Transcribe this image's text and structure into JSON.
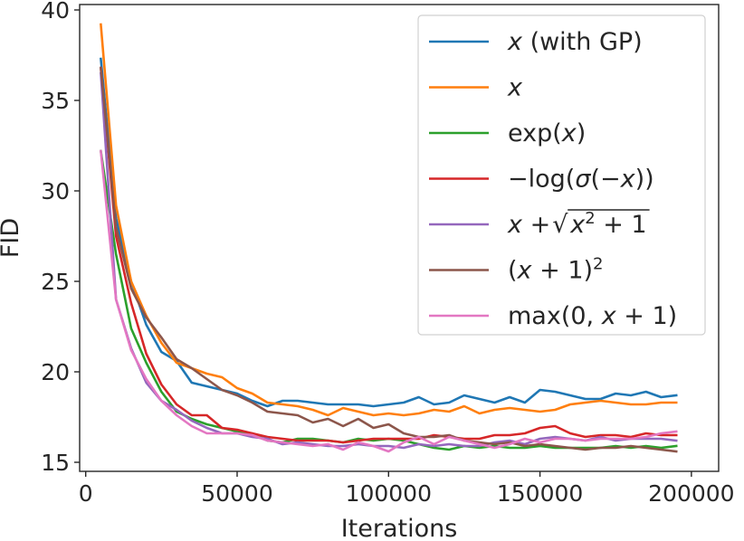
{
  "chart_data": {
    "type": "line",
    "title": "",
    "xlabel": "Iterations",
    "ylabel": "FID",
    "xlim": [
      -2000,
      209000
    ],
    "ylim": [
      14.5,
      40.3
    ],
    "xticks": [
      0,
      50000,
      100000,
      150000,
      200000
    ],
    "xtick_labels": [
      "0",
      "50000",
      "100000",
      "150000",
      "200000"
    ],
    "yticks": [
      15,
      20,
      25,
      30,
      35,
      40
    ],
    "ytick_labels": [
      "15",
      "20",
      "25",
      "30",
      "35",
      "40"
    ],
    "grid": false,
    "legend_position": "top-right",
    "x": [
      5000,
      10000,
      15000,
      20000,
      25000,
      30000,
      35000,
      40000,
      45000,
      50000,
      55000,
      60000,
      65000,
      70000,
      75000,
      80000,
      85000,
      90000,
      95000,
      100000,
      105000,
      110000,
      115000,
      120000,
      125000,
      130000,
      135000,
      140000,
      145000,
      150000,
      155000,
      160000,
      165000,
      170000,
      175000,
      180000,
      185000,
      190000,
      195000
    ],
    "series": [
      {
        "name": "x (with GP)",
        "label_parts": [
          {
            "t": "x",
            "i": true
          },
          {
            "t": " (with GP)",
            "i": false
          }
        ],
        "color": "#1f77b4",
        "values": [
          37.3,
          28.5,
          25.0,
          22.6,
          21.1,
          20.6,
          19.4,
          19.2,
          19.0,
          18.8,
          18.4,
          18.1,
          18.4,
          18.4,
          18.3,
          18.2,
          18.2,
          18.2,
          18.1,
          18.2,
          18.3,
          18.6,
          18.2,
          18.3,
          18.7,
          18.5,
          18.3,
          18.6,
          18.3,
          19.0,
          18.9,
          18.7,
          18.5,
          18.5,
          18.8,
          18.7,
          18.9,
          18.6,
          18.7
        ]
      },
      {
        "name": "x",
        "label_parts": [
          {
            "t": "x",
            "i": true
          }
        ],
        "color": "#ff7f0e",
        "values": [
          39.2,
          29.2,
          25.0,
          23.1,
          21.6,
          20.5,
          20.2,
          19.9,
          19.7,
          19.1,
          18.8,
          18.3,
          18.2,
          18.1,
          17.9,
          17.6,
          18.0,
          17.8,
          17.6,
          17.7,
          17.6,
          17.7,
          17.9,
          17.8,
          18.1,
          17.7,
          17.9,
          18.0,
          17.9,
          17.8,
          17.9,
          18.2,
          18.3,
          18.4,
          18.3,
          18.2,
          18.2,
          18.3,
          18.3
        ]
      },
      {
        "name": "exp(x)",
        "label_parts": [
          {
            "t": "exp(",
            "i": false
          },
          {
            "t": "x",
            "i": true
          },
          {
            "t": ")",
            "i": false
          }
        ],
        "color": "#2ca02c",
        "values": [
          32.2,
          26.5,
          22.4,
          20.5,
          18.9,
          17.8,
          17.4,
          17.1,
          16.9,
          16.7,
          16.6,
          16.2,
          16.1,
          16.3,
          16.3,
          16.2,
          16.1,
          16.3,
          16.2,
          16.3,
          16.2,
          16.0,
          15.8,
          15.7,
          15.9,
          15.8,
          15.9,
          15.8,
          15.8,
          15.9,
          15.8,
          15.8,
          15.8,
          15.8,
          15.9,
          15.8,
          15.9,
          15.8,
          15.9
        ]
      },
      {
        "name": "−log(σ(−x))",
        "label_parts": [
          {
            "t": "−log(",
            "i": false
          },
          {
            "t": "σ",
            "i": true
          },
          {
            "t": "(−",
            "i": false
          },
          {
            "t": "x",
            "i": true
          },
          {
            "t": "))",
            "i": false
          }
        ],
        "color": "#d62728",
        "values": [
          36.8,
          27.5,
          23.8,
          21.0,
          19.3,
          18.2,
          17.6,
          17.6,
          16.9,
          16.8,
          16.6,
          16.4,
          16.3,
          16.2,
          16.2,
          16.2,
          16.1,
          16.2,
          16.3,
          16.3,
          16.3,
          16.3,
          16.5,
          16.4,
          16.3,
          16.3,
          16.5,
          16.5,
          16.6,
          16.9,
          17.0,
          16.6,
          16.4,
          16.5,
          16.5,
          16.4,
          16.6,
          16.5,
          16.5
        ]
      },
      {
        "name": "x + √(x² + 1)",
        "label_parts": [
          {
            "t": "x",
            "i": true
          },
          {
            "t": " + ",
            "i": false
          }
        ],
        "sqrt_parts": [
          {
            "t": "x",
            "i": true
          },
          {
            "t": "2",
            "i": false,
            "sup": true
          },
          {
            "t": " + 1",
            "i": false
          }
        ],
        "color": "#9467bd",
        "values": [
          36.5,
          24.0,
          21.3,
          19.4,
          18.4,
          17.9,
          17.3,
          16.9,
          16.6,
          16.6,
          16.4,
          16.3,
          16.0,
          16.1,
          16.0,
          15.9,
          15.9,
          16.0,
          15.9,
          15.9,
          15.8,
          16.0,
          15.9,
          16.0,
          15.9,
          15.9,
          16.1,
          16.2,
          16.0,
          16.3,
          16.4,
          16.3,
          16.2,
          16.4,
          16.2,
          16.3,
          16.3,
          16.3,
          16.2
        ]
      },
      {
        "name": "(x + 1)²",
        "label_parts": [
          {
            "t": "(",
            "i": false
          },
          {
            "t": "x",
            "i": true
          },
          {
            "t": " + 1)",
            "i": false
          },
          {
            "t": "2",
            "i": false,
            "sup": true
          }
        ],
        "color": "#8c564b",
        "values": [
          36.8,
          28.0,
          24.6,
          23.0,
          21.9,
          20.7,
          20.2,
          19.6,
          19.0,
          18.7,
          18.3,
          17.8,
          17.7,
          17.6,
          17.2,
          17.4,
          17.0,
          17.4,
          16.9,
          17.1,
          16.6,
          16.4,
          16.4,
          16.5,
          16.2,
          16.1,
          16.0,
          16.1,
          15.9,
          16.0,
          15.9,
          15.8,
          15.7,
          15.8,
          15.8,
          15.9,
          15.8,
          15.7,
          15.6
        ]
      },
      {
        "name": "max(0, x + 1)",
        "label_parts": [
          {
            "t": "max(0, ",
            "i": false
          },
          {
            "t": "x",
            "i": true
          },
          {
            "t": " + 1)",
            "i": false
          }
        ],
        "color": "#e377c2",
        "values": [
          32.2,
          24.0,
          21.2,
          19.6,
          18.4,
          17.6,
          17.0,
          16.6,
          16.6,
          16.6,
          16.5,
          16.2,
          16.1,
          16.0,
          15.9,
          16.0,
          15.7,
          16.1,
          15.9,
          15.6,
          16.1,
          16.4,
          16.0,
          16.4,
          16.2,
          16.0,
          15.8,
          16.0,
          16.3,
          16.1,
          16.3,
          16.3,
          16.2,
          16.3,
          16.3,
          16.3,
          16.4,
          16.6,
          16.7
        ]
      }
    ]
  }
}
